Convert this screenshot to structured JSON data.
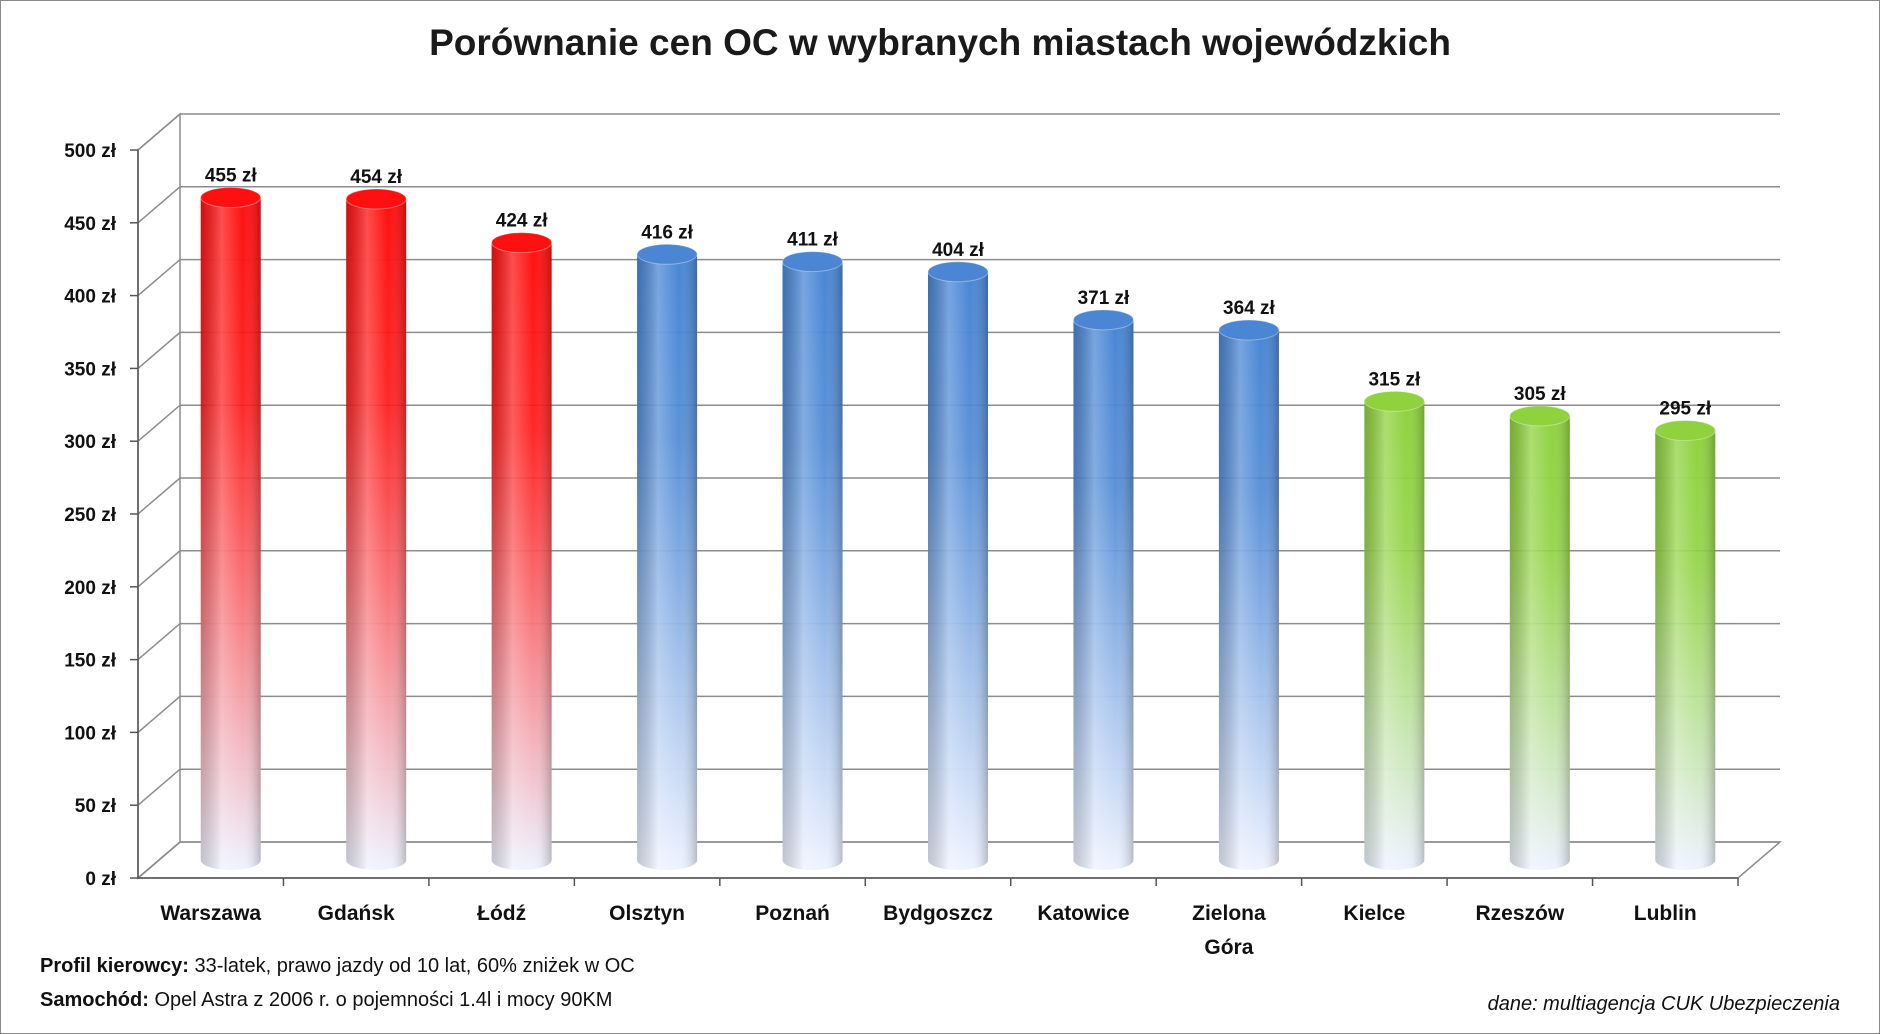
{
  "chart_data": {
    "type": "bar",
    "title": "Porównanie cen OC w wybranych miastach wojewódzkich",
    "xlabel": "",
    "ylabel": "",
    "ylim": [
      0,
      500
    ],
    "yticks": [
      "0 zł",
      "50 zł",
      "100 zł",
      "150 zł",
      "200 zł",
      "250 zł",
      "300 zł",
      "350 zł",
      "400 zł",
      "450 zł",
      "500 zł"
    ],
    "grid": true,
    "style": "3d-cylinder",
    "categories": [
      [
        "Warszawa"
      ],
      [
        "Gdańsk"
      ],
      [
        "Łódź"
      ],
      [
        "Olsztyn"
      ],
      [
        "Poznań"
      ],
      [
        "Bydgoszcz"
      ],
      [
        "Katowice"
      ],
      [
        "Zielona",
        "Góra"
      ],
      [
        "Kielce"
      ],
      [
        "Rzeszów"
      ],
      [
        "Lublin"
      ]
    ],
    "values": [
      455,
      454,
      424,
      416,
      411,
      404,
      371,
      364,
      315,
      305,
      295
    ],
    "data_labels": [
      "455 zł",
      "454 zł",
      "424 zł",
      "416 zł",
      "411 zł",
      "404 zł",
      "371 zł",
      "364 zł",
      "315 zł",
      "305 zł",
      "295 zł"
    ],
    "bar_colors": [
      "red",
      "red",
      "red",
      "blue",
      "blue",
      "blue",
      "blue",
      "blue",
      "green",
      "green",
      "green"
    ],
    "colors": {
      "red": "#ff1010",
      "blue": "#4a86d4",
      "green": "#8fd23e",
      "base": "#eef3ff"
    }
  },
  "notes": {
    "profile_label": "Profil kierowcy:",
    "profile_text": "  33-latek, prawo jazdy od 10 lat, 60% zniżek w OC",
    "car_label": "Samochód:",
    "car_text": " Opel Astra z 2006  r. o pojemności 1.4l i mocy 90KM",
    "source": "dane: multiagencja CUK Ubezpieczenia"
  }
}
